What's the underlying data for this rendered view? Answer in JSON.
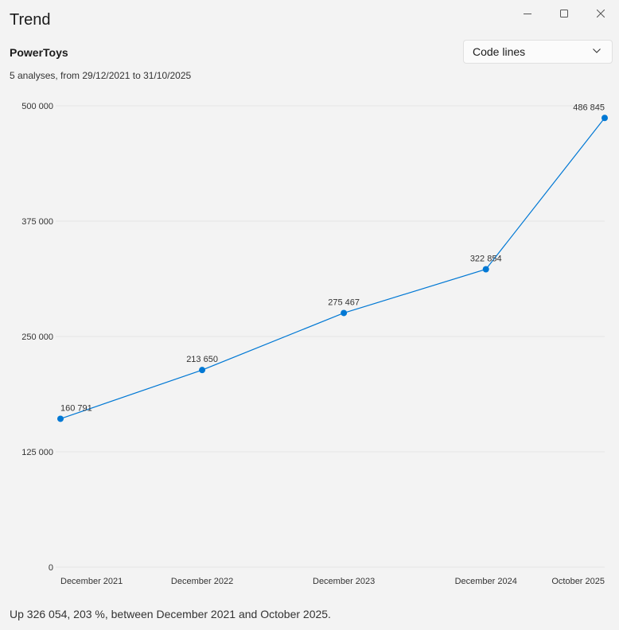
{
  "window": {
    "title": "Trend",
    "controls": [
      "minimize-icon",
      "maximize-icon",
      "close-icon"
    ]
  },
  "header": {
    "project": "PowerToys",
    "subtitle": "5 analyses, from 29/12/2021 to 31/10/2025",
    "metric_selector": {
      "selected": "Code lines",
      "icon": "chevron-down-icon"
    }
  },
  "chart_data": {
    "type": "line",
    "categories": [
      "December 2021",
      "December 2022",
      "December 2023",
      "December 2024",
      "October 2025"
    ],
    "x_dates": [
      "2021-12-29",
      "2022-12-29",
      "2023-12-29",
      "2024-12-29",
      "2025-10-31"
    ],
    "values": [
      160791,
      213650,
      275467,
      322854,
      486845
    ],
    "data_labels": [
      "160 791",
      "213 650",
      "275 467",
      "322 854",
      "486 845"
    ],
    "yticks": [
      0,
      125000,
      250000,
      375000,
      500000
    ],
    "ytick_labels": [
      "0",
      "125 000",
      "250 000",
      "375 000",
      "500 000"
    ],
    "ylim": [
      0,
      500000
    ],
    "grid": true,
    "color": "#0078d4"
  },
  "footer": {
    "summary": "Up 326 054, 203 %, between December 2021 and October 2025."
  }
}
